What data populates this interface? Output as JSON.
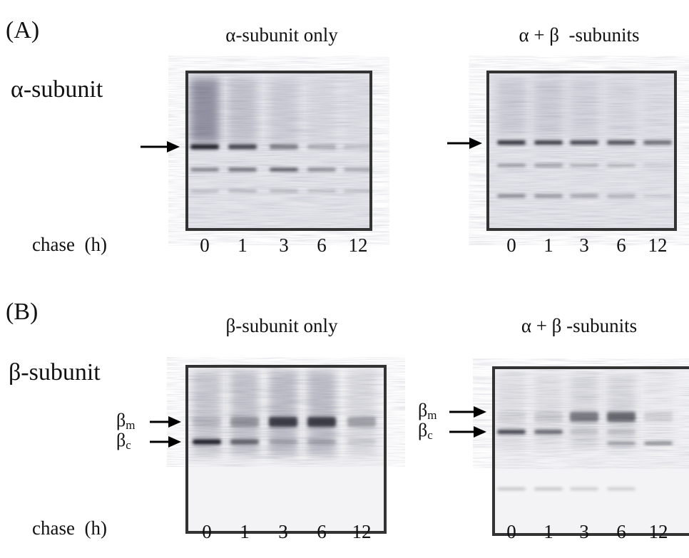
{
  "panels": [
    {
      "label": "(A)",
      "row_label": "α-subunit",
      "axis_label": "chase  (h)",
      "blots": [
        {
          "title": "α-subunit only",
          "lanes": [
            "0",
            "1",
            "3",
            "6",
            "12"
          ],
          "arrows": []
        },
        {
          "title": "α + β  -subunits",
          "lanes": [
            "0",
            "1",
            "3",
            "6",
            "12"
          ],
          "arrows": []
        }
      ]
    },
    {
      "label": "(B)",
      "row_label": "β-subunit",
      "axis_label": "chase  (h)",
      "blots": [
        {
          "title": "β-subunit only",
          "lanes": [
            "0",
            "1",
            "3",
            "6",
            "12"
          ],
          "arrows": [
            {
              "symbol": "β",
              "subscript": "m"
            },
            {
              "symbol": "β",
              "subscript": "c"
            }
          ]
        },
        {
          "title": "α + β -subunits",
          "lanes": [
            "0",
            "1",
            "3",
            "6",
            "12"
          ],
          "arrows": [
            {
              "symbol": "β",
              "subscript": "m"
            },
            {
              "symbol": "β",
              "subscript": "c"
            }
          ]
        }
      ]
    }
  ]
}
